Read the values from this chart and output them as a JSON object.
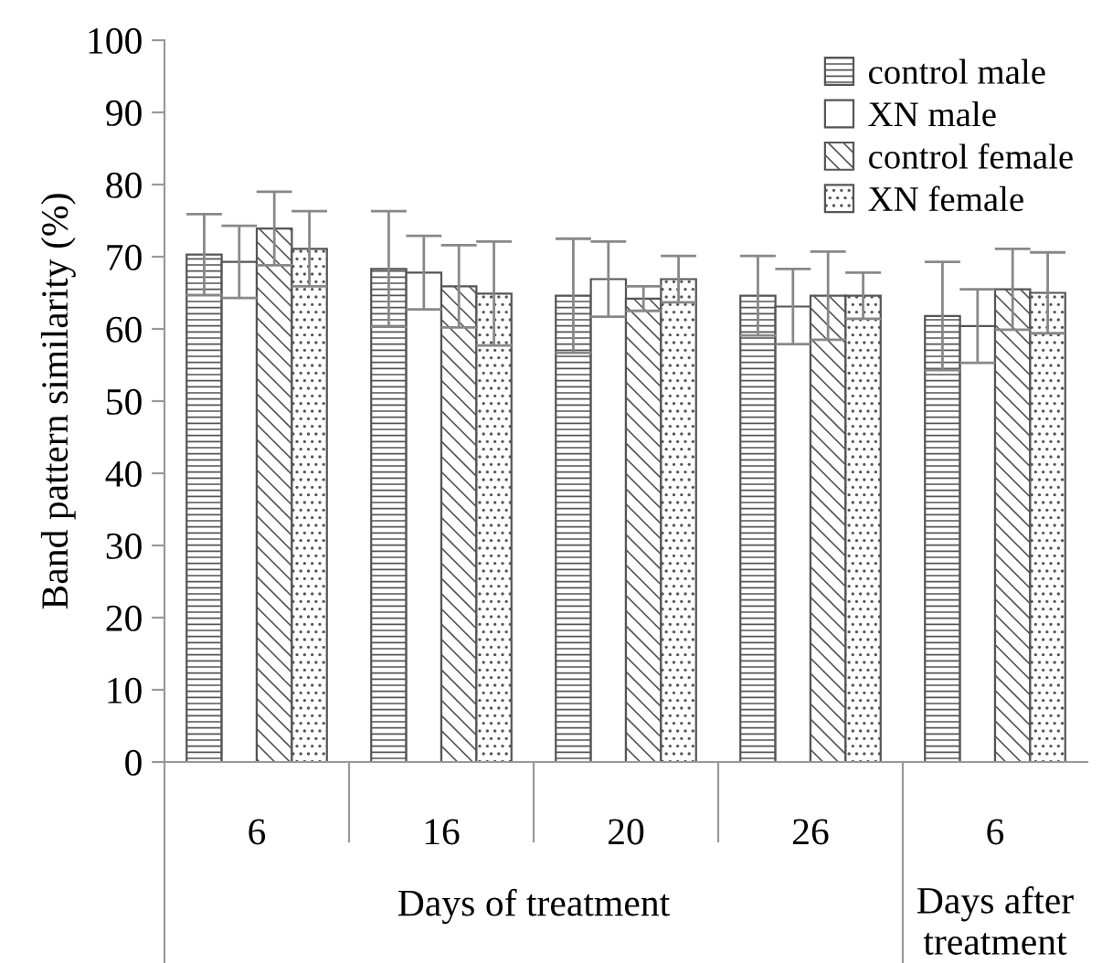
{
  "chart_data": {
    "type": "bar",
    "categories": [
      "6",
      "16",
      "20",
      "26",
      "6"
    ],
    "series": [
      {
        "name": "control male",
        "color": "#555555",
        "values": [
          70.3,
          68.3,
          64.6,
          64.6,
          61.8
        ],
        "errors": [
          5.6,
          8,
          7.9,
          5.5,
          7.5
        ]
      },
      {
        "name": "XN male",
        "color": "#ffffff",
        "values": [
          69.3,
          67.8,
          66.9,
          63.1,
          60.4
        ],
        "errors": [
          5,
          5.1,
          5.2,
          5.2,
          5.1
        ]
      },
      {
        "name": "control female",
        "color": "#555555",
        "values": [
          73.9,
          65.9,
          64.2,
          64.6,
          65.5
        ],
        "errors": [
          5.1,
          5.7,
          1.7,
          6.1,
          5.6
        ]
      },
      {
        "name": "XN female",
        "color": "#555555",
        "values": [
          71.1,
          64.9,
          66.9,
          64.6,
          65
        ],
        "errors": [
          5.2,
          7.2,
          3.2,
          3.2,
          5.6
        ]
      }
    ],
    "ylabel": "Band pattern similarity (%)",
    "ylim": [
      0,
      100
    ],
    "yticks": [
      0,
      10,
      20,
      30,
      40,
      50,
      60,
      70,
      80,
      90,
      100
    ],
    "annotations": [
      "Days of treatment",
      "Days after\ntreatment"
    ],
    "legend": "top right",
    "grid": false
  }
}
